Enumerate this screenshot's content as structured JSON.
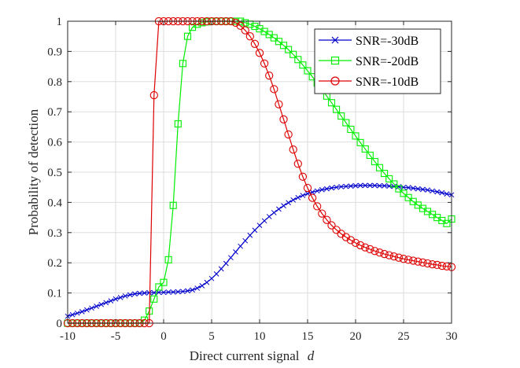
{
  "chart_data": {
    "type": "line",
    "title": "",
    "xlabel": "Direct current signal",
    "xlabel_symbol": "d",
    "ylabel": "Probability of detection",
    "xlim": [
      -10,
      30
    ],
    "ylim": [
      0,
      1
    ],
    "xticks": [
      -10,
      -5,
      0,
      5,
      10,
      15,
      20,
      25,
      30
    ],
    "yticks": [
      0,
      0.1,
      0.2,
      0.3,
      0.4,
      0.5,
      0.6,
      0.7,
      0.8,
      0.9,
      1
    ],
    "xtick_labels": [
      "-10",
      "-5",
      "0",
      "5",
      "10",
      "15",
      "20",
      "25",
      "30"
    ],
    "ytick_labels": [
      "0",
      "0.1",
      "0.2",
      "0.3",
      "0.4",
      "0.5",
      "0.6",
      "0.7",
      "0.8",
      "0.9",
      "1"
    ],
    "grid": true,
    "legend_position": "top-right",
    "x": [
      -10,
      -9.5,
      -9,
      -8.5,
      -8,
      -7.5,
      -7,
      -6.5,
      -6,
      -5.5,
      -5,
      -4.5,
      -4,
      -3.5,
      -3,
      -2.5,
      -2,
      -1.5,
      -1,
      -0.5,
      0,
      0.5,
      1,
      1.5,
      2,
      2.5,
      3,
      3.5,
      4,
      4.5,
      5,
      5.5,
      6,
      6.5,
      7,
      7.5,
      8,
      8.5,
      9,
      9.5,
      10,
      10.5,
      11,
      11.5,
      12,
      12.5,
      13,
      13.5,
      14,
      14.5,
      15,
      15.5,
      16,
      16.5,
      17,
      17.5,
      18,
      18.5,
      19,
      19.5,
      20,
      20.5,
      21,
      21.5,
      22,
      22.5,
      23,
      23.5,
      24,
      24.5,
      25,
      25.5,
      26,
      26.5,
      27,
      27.5,
      28,
      28.5,
      29,
      29.5,
      30
    ],
    "series": [
      {
        "name": "SNR=-30dB",
        "color": "#0000cc",
        "marker": "x",
        "values": [
          0.023,
          0.028,
          0.033,
          0.038,
          0.044,
          0.05,
          0.056,
          0.062,
          0.068,
          0.074,
          0.08,
          0.085,
          0.09,
          0.094,
          0.097,
          0.099,
          0.1,
          0.101,
          0.101,
          0.102,
          0.102,
          0.103,
          0.103,
          0.104,
          0.105,
          0.107,
          0.11,
          0.116,
          0.124,
          0.135,
          0.148,
          0.163,
          0.18,
          0.198,
          0.217,
          0.236,
          0.255,
          0.273,
          0.291,
          0.308,
          0.324,
          0.339,
          0.353,
          0.366,
          0.378,
          0.389,
          0.399,
          0.408,
          0.416,
          0.423,
          0.429,
          0.434,
          0.438,
          0.442,
          0.445,
          0.448,
          0.45,
          0.452,
          0.453,
          0.454,
          0.455,
          0.456,
          0.456,
          0.456,
          0.456,
          0.455,
          0.455,
          0.454,
          0.453,
          0.452,
          0.45,
          0.449,
          0.447,
          0.445,
          0.443,
          0.441,
          0.438,
          0.435,
          0.432,
          0.428,
          0.425
        ]
      },
      {
        "name": "SNR=-20dB",
        "color": "#00ee00",
        "marker": "square",
        "values": [
          0.0,
          0.0,
          0.0,
          0.0,
          0.0,
          0.0,
          0.0,
          0.0,
          0.0,
          0.0,
          0.0,
          0.0,
          0.0,
          0.0,
          0.0,
          0.0,
          0.01,
          0.04,
          0.08,
          0.12,
          0.135,
          0.21,
          0.39,
          0.66,
          0.86,
          0.95,
          0.98,
          0.99,
          0.995,
          0.998,
          1.0,
          1.0,
          1.0,
          1.0,
          1.0,
          1.0,
          1.0,
          0.995,
          0.99,
          0.983,
          0.975,
          0.966,
          0.956,
          0.945,
          0.933,
          0.92,
          0.906,
          0.89,
          0.873,
          0.855,
          0.836,
          0.816,
          0.795,
          0.774,
          0.752,
          0.73,
          0.708,
          0.686,
          0.664,
          0.642,
          0.62,
          0.598,
          0.577,
          0.556,
          0.535,
          0.515,
          0.496,
          0.478,
          0.461,
          0.445,
          0.43,
          0.416,
          0.403,
          0.391,
          0.38,
          0.37,
          0.36,
          0.35,
          0.34,
          0.33,
          0.345
        ]
      },
      {
        "name": "SNR=-10dB",
        "color": "#dd0000",
        "marker": "circle",
        "values": [
          0.0,
          0.0,
          0.0,
          0.0,
          0.0,
          0.0,
          0.0,
          0.0,
          0.0,
          0.0,
          0.0,
          0.0,
          0.0,
          0.0,
          0.0,
          0.0,
          0.0,
          0.0,
          0.755,
          1.0,
          1.0,
          1.0,
          1.0,
          1.0,
          1.0,
          1.0,
          1.0,
          1.0,
          1.0,
          1.0,
          1.0,
          1.0,
          1.0,
          1.0,
          1.0,
          0.995,
          0.985,
          0.97,
          0.95,
          0.925,
          0.895,
          0.86,
          0.82,
          0.775,
          0.725,
          0.675,
          0.625,
          0.575,
          0.528,
          0.485,
          0.448,
          0.415,
          0.387,
          0.363,
          0.342,
          0.324,
          0.309,
          0.296,
          0.285,
          0.275,
          0.266,
          0.258,
          0.251,
          0.245,
          0.239,
          0.234,
          0.229,
          0.225,
          0.221,
          0.217,
          0.213,
          0.21,
          0.207,
          0.204,
          0.201,
          0.198,
          0.195,
          0.193,
          0.19,
          0.188,
          0.186
        ]
      }
    ]
  }
}
